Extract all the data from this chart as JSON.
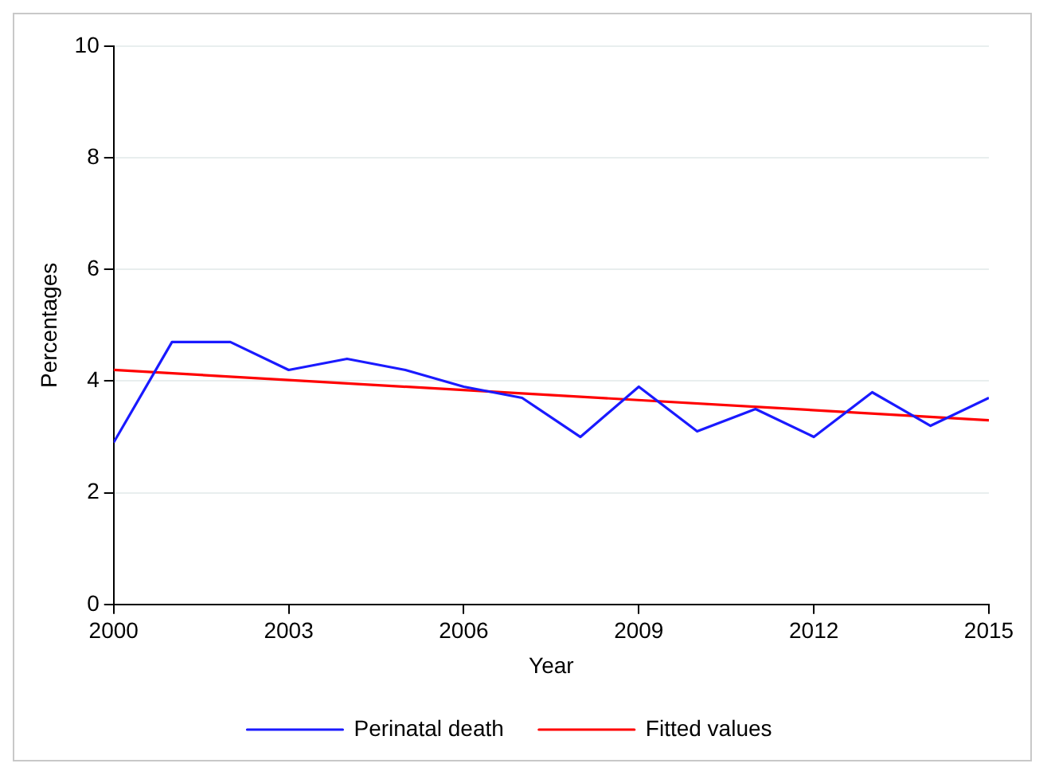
{
  "chart_data": {
    "type": "line",
    "xlabel": "Year",
    "ylabel": "Percentages",
    "x": [
      2000,
      2001,
      2002,
      2003,
      2004,
      2005,
      2006,
      2007,
      2008,
      2009,
      2010,
      2011,
      2012,
      2013,
      2014,
      2015
    ],
    "series": [
      {
        "name": "Perinatal death",
        "color": "#1a1aff",
        "values": [
          2.9,
          4.7,
          4.7,
          4.2,
          4.4,
          4.2,
          3.9,
          3.7,
          3.0,
          3.9,
          3.1,
          3.5,
          3.0,
          3.8,
          3.2,
          3.7
        ]
      },
      {
        "name": "Fitted values",
        "color": "#ff0000",
        "type": "line",
        "x": [
          2000,
          2015
        ],
        "values": [
          4.2,
          3.3
        ]
      }
    ],
    "xlim": [
      2000,
      2015
    ],
    "xticks": [
      2000,
      2003,
      2006,
      2009,
      2012,
      2015
    ],
    "ylim": [
      0,
      10
    ],
    "yticks": [
      0,
      2,
      4,
      6,
      8,
      10
    ],
    "grid": "y",
    "legend": "bottom",
    "marker": "none",
    "line_style": "solid"
  }
}
